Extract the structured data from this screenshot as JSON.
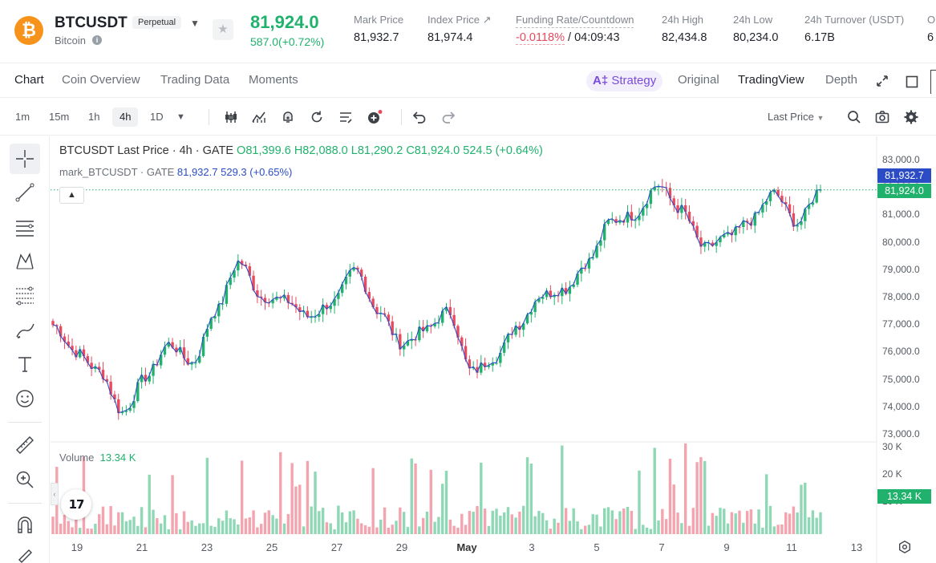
{
  "header": {
    "coin_glyph": "₿",
    "symbol": "BTCUSDT",
    "contract_type": "Perpetual",
    "coin_name": "Bitcoin",
    "last_price": "81,924.0",
    "change": "587.0(+0.72%)",
    "stats": [
      {
        "label": "Mark Price",
        "value": "81,932.7"
      },
      {
        "label": "Index Price ↗",
        "value": "81,974.4"
      },
      {
        "label": "Funding Rate/Countdown",
        "value_neg": "-0.0118%",
        "value": " / 04:09:43"
      },
      {
        "label": "24h High",
        "value": "82,434.8"
      },
      {
        "label": "24h Low",
        "value": "80,234.0"
      },
      {
        "label": "24h Turnover (USDT)",
        "value": "6.17B"
      },
      {
        "label": "O",
        "value": "6"
      }
    ]
  },
  "tabs": {
    "left": [
      "Chart",
      "Coin Overview",
      "Trading Data",
      "Moments"
    ],
    "strategy_ai": "A‡",
    "strategy_label": "Strategy",
    "views": [
      "Original",
      "TradingView",
      "Depth"
    ]
  },
  "toolbar": {
    "intervals": [
      "1m",
      "15m",
      "1h",
      "4h",
      "1D"
    ],
    "active_interval": "4h",
    "price_source": "Last Price"
  },
  "chart": {
    "legend_main": {
      "prefix": "BTCUSDT Last Price · 4h · GATE ",
      "o": "O81,399.6",
      "h": "H82,088.0",
      "l": "L81,290.2",
      "c": "C81,924.0",
      "chg": "524.5 (+0.64%)"
    },
    "legend_mark": {
      "prefix": "mark_BTCUSDT · GATE ",
      "value": "81,932.7",
      "chg": "529.3 (+0.65%)"
    },
    "volume_label": "Volume",
    "volume_value": "13.34 K",
    "tv_logo": "17",
    "mark_tag": "81,932.7",
    "last_tag": "81,924.0",
    "volume_tag": "13.34 K",
    "up_color": "#20b26c",
    "down_color": "#e84a5f",
    "mark_color": "#2b4cc4"
  },
  "chart_data": {
    "type": "candlestick",
    "y_axis_labels": [
      "83,000.0",
      "82,000.0",
      "81,000.0",
      "80,000.0",
      "79,000.0",
      "78,000.0",
      "77,000.0",
      "76,000.0",
      "75,000.0",
      "74,000.0",
      "73,000.0"
    ],
    "ylim": [
      73000,
      83000
    ],
    "volume_axis_labels": [
      "30 K",
      "20 K",
      "10 K"
    ],
    "x_axis_labels": [
      "19",
      "21",
      "23",
      "25",
      "27",
      "29",
      "May",
      "3",
      "5",
      "7",
      "9",
      "11",
      "13"
    ],
    "trend_closes": [
      {
        "x": "18",
        "close": 77000
      },
      {
        "x": "19",
        "close": 76000
      },
      {
        "x": "19.5",
        "close": 75300
      },
      {
        "x": "20",
        "close": 73800
      },
      {
        "x": "20.5",
        "close": 75100
      },
      {
        "x": "21",
        "close": 76300
      },
      {
        "x": "21.6",
        "close": 75600
      },
      {
        "x": "22",
        "close": 77500
      },
      {
        "x": "22.6",
        "close": 79300
      },
      {
        "x": "23",
        "close": 78000
      },
      {
        "x": "24",
        "close": 77900
      },
      {
        "x": "25",
        "close": 77300
      },
      {
        "x": "26",
        "close": 77800
      },
      {
        "x": "26.6",
        "close": 79000
      },
      {
        "x": "27",
        "close": 77500
      },
      {
        "x": "28",
        "close": 76300
      },
      {
        "x": "28.6",
        "close": 76800
      },
      {
        "x": "29",
        "close": 77500
      },
      {
        "x": "29.6",
        "close": 75300
      },
      {
        "x": "30",
        "close": 75800
      },
      {
        "x": "May 1",
        "close": 77000
      },
      {
        "x": "May 2",
        "close": 78100
      },
      {
        "x": "May 3",
        "close": 78300
      },
      {
        "x": "May 4",
        "close": 79300
      },
      {
        "x": "May 5",
        "close": 80800
      },
      {
        "x": "May 6",
        "close": 81000
      },
      {
        "x": "May 6.6",
        "close": 82100
      },
      {
        "x": "May 7",
        "close": 81200
      },
      {
        "x": "May 8",
        "close": 79800
      },
      {
        "x": "May 9",
        "close": 80200
      },
      {
        "x": "May 10",
        "close": 80800
      },
      {
        "x": "May 10.6",
        "close": 81800
      },
      {
        "x": "May 11",
        "close": 80700
      },
      {
        "x": "May 11.6",
        "close": 81924
      }
    ]
  }
}
